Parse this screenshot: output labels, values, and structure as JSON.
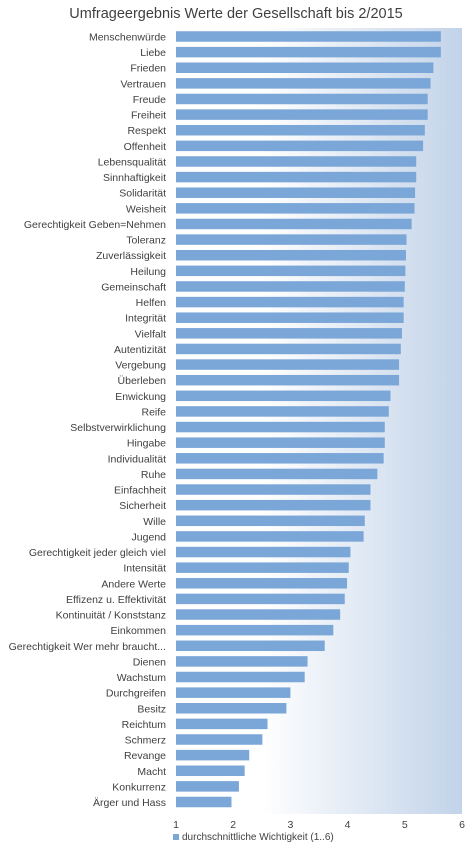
{
  "chart_data": {
    "type": "bar",
    "orientation": "horizontal",
    "title": "Umfrageergebnis Werte der Gesellschaft bis 2/2015",
    "xlim": [
      1,
      6
    ],
    "xticks": [
      "1",
      "2",
      "3",
      "4",
      "5",
      "6"
    ],
    "gridlines": false,
    "background": "white-to-blue gradient",
    "legend_position": "bottom",
    "series": [
      {
        "name": "durchschnittliche Wichtigkeit (1..6)",
        "color": "#7aa6d8",
        "values": [
          5.63,
          5.63,
          5.5,
          5.45,
          5.4,
          5.4,
          5.35,
          5.32,
          5.2,
          5.2,
          5.18,
          5.17,
          5.12,
          5.03,
          5.02,
          5.01,
          5.0,
          4.98,
          4.98,
          4.95,
          4.93,
          4.9,
          4.9,
          4.75,
          4.72,
          4.65,
          4.65,
          4.63,
          4.52,
          4.4,
          4.4,
          4.3,
          4.28,
          4.05,
          4.02,
          3.99,
          3.95,
          3.87,
          3.75,
          3.6,
          3.3,
          3.25,
          3.0,
          2.93,
          2.6,
          2.51,
          2.28,
          2.2,
          2.1,
          1.97
        ]
      }
    ],
    "categories": [
      "Menschenwürde",
      "Liebe",
      "Frieden",
      "Vertrauen",
      "Freude",
      "Freiheit",
      "Respekt",
      "Offenheit",
      "Lebensqualität",
      "Sinnhaftigkeit",
      "Solidarität",
      "Weisheit",
      "Gerechtigkeit Geben=Nehmen",
      "Toleranz",
      "Zuverlässigkeit",
      "Heilung",
      "Gemeinschaft",
      "Helfen",
      "Integrität",
      "Vielfalt",
      "Autentizität",
      "Vergebung",
      "Überleben",
      "Enwickung",
      "Reife",
      "Selbstverwirklichung",
      "Hingabe",
      "Individualität",
      "Ruhe",
      "Einfachheit",
      "Sicherheit",
      "Wille",
      "Jugend",
      "Gerechtigkeit jeder gleich viel",
      "Intensität",
      "Andere Werte",
      "Effizenz u. Effektivität",
      "Kontinuität / Konststanz",
      "Einkommen",
      "Gerechtigkeit Wer mehr braucht...",
      "Dienen",
      "Wachstum",
      "Durchgreifen",
      "Besitz",
      "Reichtum",
      "Schmerz",
      "Revange",
      "Macht",
      "Konkurrenz",
      "Ärger und Hass"
    ]
  }
}
